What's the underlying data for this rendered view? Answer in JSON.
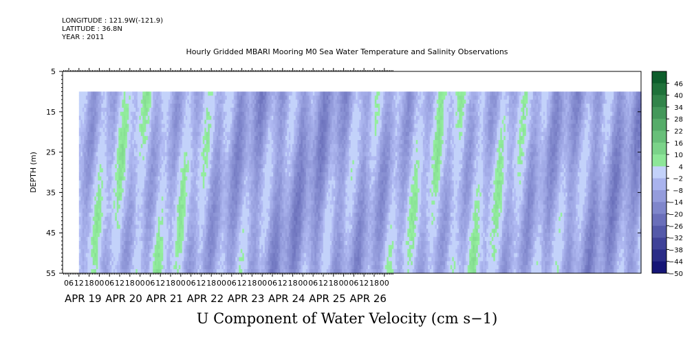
{
  "header": {
    "longitude": "LONGITUDE : 121.9W(-121.9)",
    "latitude": "LATITUDE : 36.8N",
    "year": "YEAR : 2011"
  },
  "chart_data": {
    "type": "heatmap",
    "title": "Hourly Gridded MBARI Mooring M0 Sea Water Temperature and Salinity Observations",
    "xlabel": "U Component of Water Velocity (cm s−1)",
    "ylabel": "DEPTH (m)",
    "y_axis": {
      "ticks": [
        5,
        15,
        25,
        35,
        45,
        55
      ],
      "range": [
        5,
        55
      ],
      "inverted": true
    },
    "x_axis": {
      "hour_ticks": [
        "06",
        "12",
        "18",
        "00",
        "06",
        "12",
        "18",
        "00",
        "06",
        "12",
        "18",
        "00",
        "06",
        "12",
        "18",
        "00",
        "06",
        "12",
        "18",
        "00",
        "06",
        "12",
        "18",
        "00",
        "06",
        "12",
        "18",
        "00",
        "06",
        "12",
        "18",
        "00"
      ],
      "date_labels": [
        "APR 19",
        "APR 20",
        "APR 21",
        "APR 22",
        "APR 23",
        "APR 24",
        "APR 25",
        "APR 26"
      ]
    },
    "data_depth_range": [
      10,
      55
    ],
    "data_start": "APR 19 12",
    "colorbar": {
      "labels": [
        "46",
        "40",
        "34",
        "28",
        "22",
        "16",
        "10",
        "4",
        "−2",
        "−8",
        "−14",
        "−20",
        "−26",
        "−32",
        "−38",
        "−44",
        "−50"
      ],
      "range": [
        -50,
        52
      ],
      "step": 6
    }
  }
}
